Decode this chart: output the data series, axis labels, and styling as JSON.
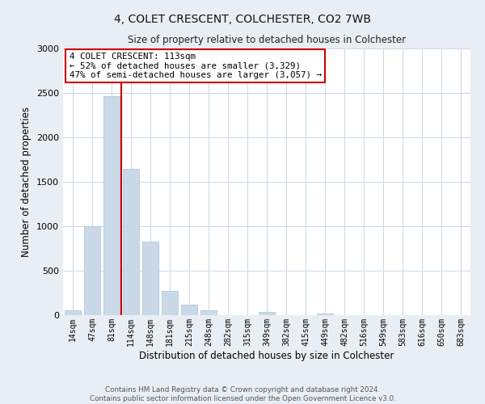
{
  "title": "4, COLET CRESCENT, COLCHESTER, CO2 7WB",
  "subtitle": "Size of property relative to detached houses in Colchester",
  "xlabel": "Distribution of detached houses by size in Colchester",
  "ylabel": "Number of detached properties",
  "bar_labels": [
    "14sqm",
    "47sqm",
    "81sqm",
    "114sqm",
    "148sqm",
    "181sqm",
    "215sqm",
    "248sqm",
    "282sqm",
    "315sqm",
    "349sqm",
    "382sqm",
    "415sqm",
    "449sqm",
    "482sqm",
    "516sqm",
    "549sqm",
    "583sqm",
    "616sqm",
    "650sqm",
    "683sqm"
  ],
  "bar_values": [
    55,
    1000,
    2460,
    1650,
    830,
    270,
    120,
    55,
    0,
    0,
    40,
    0,
    0,
    20,
    0,
    0,
    0,
    0,
    0,
    0,
    0
  ],
  "bar_color": "#c9d9e8",
  "bar_edgecolor": "#a8c0d6",
  "vline_color": "#cc0000",
  "vline_pos": 2.5,
  "annotation_title": "4 COLET CRESCENT: 113sqm",
  "annotation_line1": "← 52% of detached houses are smaller (3,329)",
  "annotation_line2": "47% of semi-detached houses are larger (3,057) →",
  "annotation_box_edgecolor": "#cc0000",
  "ylim": [
    0,
    3000
  ],
  "yticks": [
    0,
    500,
    1000,
    1500,
    2000,
    2500,
    3000
  ],
  "footer_line1": "Contains HM Land Registry data © Crown copyright and database right 2024.",
  "footer_line2": "Contains public sector information licensed under the Open Government Licence v3.0.",
  "bg_color": "#e8eef4",
  "plot_bg_color": "#ffffff",
  "grid_color": "#c8d8e8"
}
